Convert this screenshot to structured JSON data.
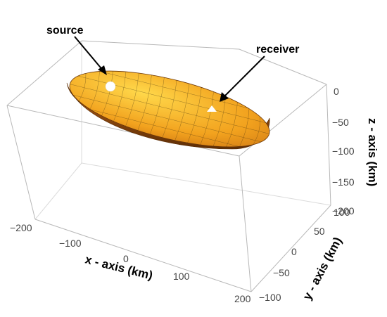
{
  "annotations": {
    "source": "source",
    "receiver": "receiver"
  },
  "axes": {
    "x": {
      "title": "x - axis (km)",
      "ticks": [
        "−200",
        "−100",
        "0",
        "100",
        "200"
      ]
    },
    "y": {
      "title": "y - axis (km)",
      "ticks": [
        "−100",
        "−50",
        "0",
        "50",
        "100"
      ]
    },
    "z": {
      "title": "z - axis (km)",
      "ticks": [
        "0",
        "−50",
        "−100",
        "−150",
        "−200"
      ]
    }
  },
  "markers": {
    "source_shape": "circle",
    "receiver_shape": "triangle",
    "marker_color": "#ffffff"
  },
  "surface": {
    "shape": "half-ellipsoid",
    "color_light": "#ffd23a",
    "color_dark": "#7a3d08"
  }
}
